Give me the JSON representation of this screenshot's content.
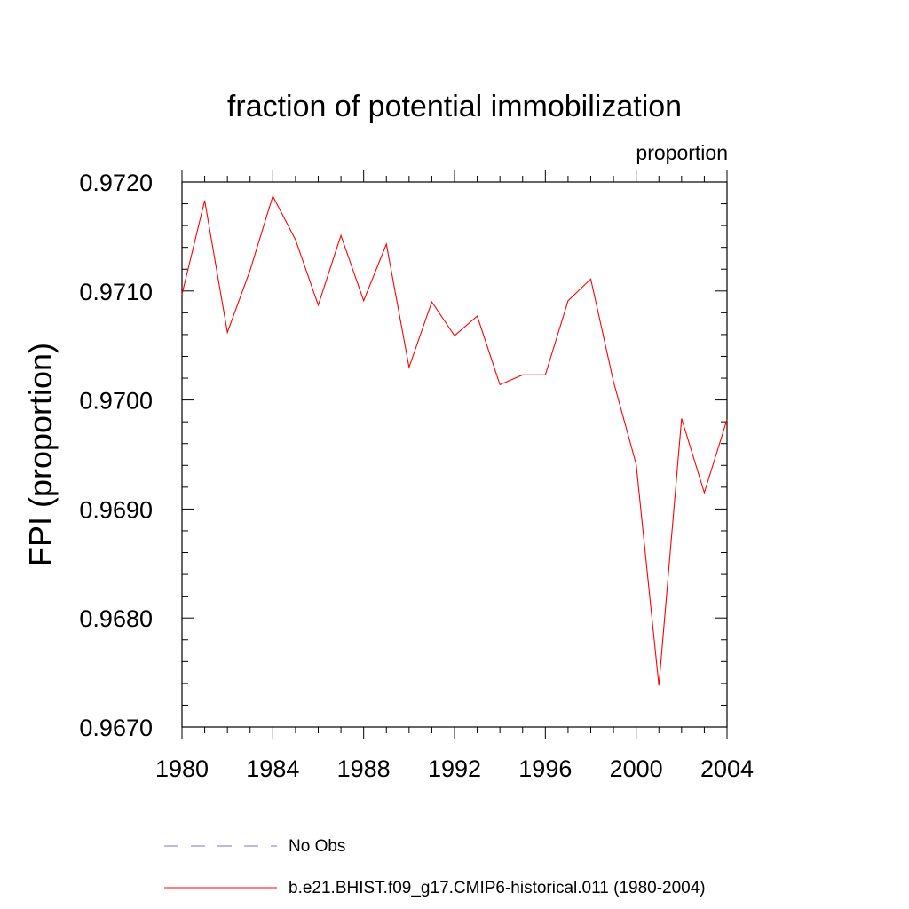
{
  "chart_data": {
    "type": "line",
    "title": "fraction of potential immobilization",
    "subtitle_right": "proportion",
    "ylabel": "FPI  (proportion)",
    "xlabel": "",
    "xlim": [
      1980,
      2004
    ],
    "ylim": [
      0.967,
      0.972
    ],
    "x_ticks": [
      "1980",
      "1984",
      "1988",
      "1992",
      "1996",
      "2000",
      "2004"
    ],
    "y_ticks": [
      "0.9670",
      "0.9680",
      "0.9690",
      "0.9700",
      "0.9710",
      "0.9720"
    ],
    "grid": false,
    "legend_position": "bottom",
    "series": [
      {
        "name": "b.e21.BHIST.f09_g17.CMIP6-historical.011 (1980-2004)",
        "color": "#ff0000",
        "x": [
          1980,
          1981,
          1982,
          1983,
          1984,
          1985,
          1986,
          1987,
          1988,
          1989,
          1990,
          1991,
          1992,
          1993,
          1994,
          1995,
          1996,
          1997,
          1998,
          1999,
          2000,
          2001,
          2002,
          2003,
          2004
        ],
        "values": [
          0.97097,
          0.97183,
          0.97062,
          0.97119,
          0.97187,
          0.97147,
          0.97087,
          0.97151,
          0.97091,
          0.97143,
          0.9703,
          0.9709,
          0.97059,
          0.97077,
          0.97014,
          0.97023,
          0.97023,
          0.97091,
          0.97111,
          0.97017,
          0.96941,
          0.96738,
          0.96983,
          0.96915,
          0.96982
        ]
      }
    ],
    "legend": [
      {
        "label": "No Obs",
        "style": "dashed",
        "color": "#7777cc"
      },
      {
        "label": "b.e21.BHIST.f09_g17.CMIP6-historical.011 (1980-2004)",
        "style": "solid",
        "color": "#ff0000"
      }
    ]
  }
}
